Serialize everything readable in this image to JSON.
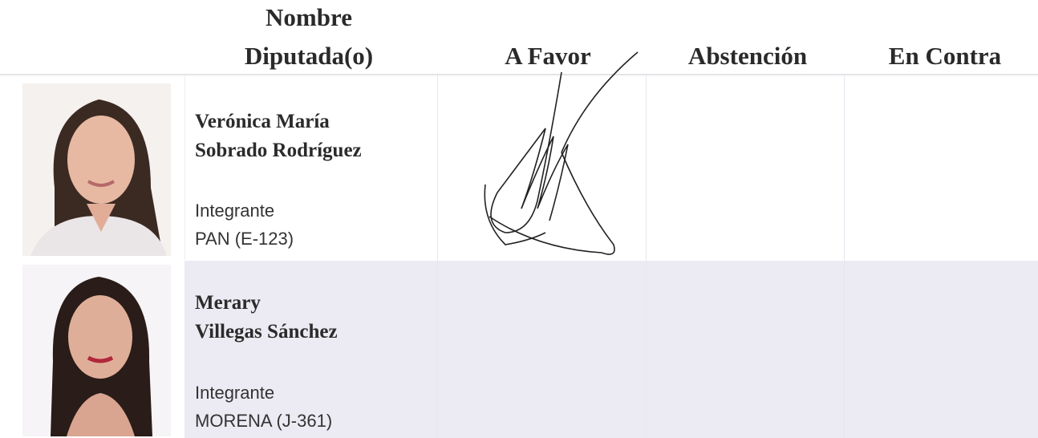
{
  "header": {
    "name_column": [
      "Nombre",
      "Diputada(o)"
    ],
    "vote_columns": [
      "A Favor",
      "Abstención",
      "En Contra"
    ]
  },
  "rows": [
    {
      "name": [
        "Verónica María",
        "Sobrado Rodríguez"
      ],
      "role": "Integrante",
      "party": "PAN (E-123)"
    },
    {
      "name": [
        "Merary",
        "Villegas Sánchez"
      ],
      "role": "Integrante",
      "party": "MORENA (J-361)"
    }
  ]
}
